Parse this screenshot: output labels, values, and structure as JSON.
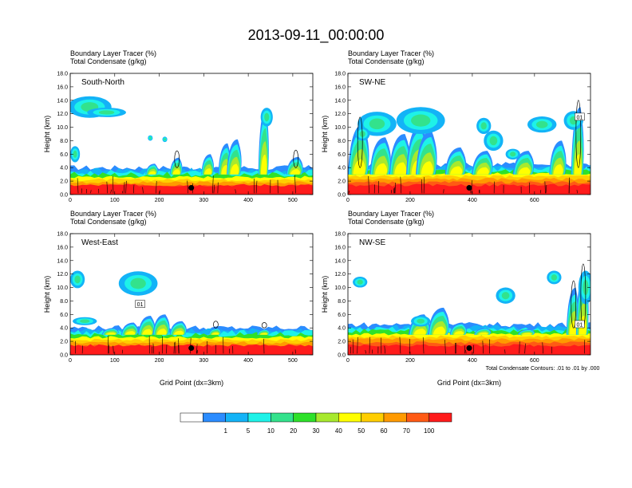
{
  "figure": {
    "title": "2013-09-11_00:00:00",
    "x_axis_label": "Grid Point (dx=3km)",
    "contour_note": "Total Condensate Contours: .01 to .01 by .000"
  },
  "colorbar": {
    "field": "Boundary Layer Tracer (%)",
    "bins": [
      {
        "color": "#ffffff",
        "label": ""
      },
      {
        "color": "#2b8cff",
        "label": "1"
      },
      {
        "color": "#13b3f7",
        "label": "5"
      },
      {
        "color": "#1ef2e8",
        "label": "10"
      },
      {
        "color": "#33e28c",
        "label": "20"
      },
      {
        "color": "#2ee12a",
        "label": "30"
      },
      {
        "color": "#a7e92e",
        "label": "40"
      },
      {
        "color": "#ffff00",
        "label": "50"
      },
      {
        "color": "#ffce00",
        "label": "60"
      },
      {
        "color": "#ff9a00",
        "label": "70"
      },
      {
        "color": "#ff5a14",
        "label": "100"
      },
      {
        "color": "#ff1b1b",
        "label": ""
      }
    ]
  },
  "chart_data": [
    {
      "type": "heatmap",
      "panel_label": "South-North",
      "subtitle_line1": "Boundary Layer Tracer   (%)",
      "subtitle_line2": "Total Condensate   (g/kg)",
      "ylabel": "Height (km)",
      "xlabel": "",
      "xlim": [
        0,
        545
      ],
      "ylim": [
        0,
        18
      ],
      "xticks": [
        0,
        100,
        200,
        300,
        400,
        500
      ],
      "yticks": [
        0,
        2,
        4,
        6,
        8,
        10,
        12,
        14,
        16,
        18
      ],
      "yticklabels": [
        "0.0",
        "2.0",
        "4.0",
        "6.0",
        "8.0",
        "10.0",
        "12.0",
        "14.0",
        "16.0",
        "18.0"
      ],
      "boundary_layer_top_km": 3.0,
      "marker_x": 272,
      "marker_y_km": 1.0,
      "contour_labels": []
    },
    {
      "type": "heatmap",
      "panel_label": "SW-NE",
      "subtitle_line1": "Boundary Layer Tracer   (%)",
      "subtitle_line2": "Total Condensate   (g/kg)",
      "ylabel": "Height (km)",
      "xlabel": "",
      "xlim": [
        0,
        780
      ],
      "ylim": [
        0,
        18
      ],
      "xticks": [
        0,
        200,
        400,
        600
      ],
      "yticks": [
        0,
        2,
        4,
        6,
        8,
        10,
        12,
        14,
        16,
        18
      ],
      "yticklabels": [
        "0.0",
        "2.0",
        "4.0",
        "6.0",
        "8.0",
        "10.0",
        "12.0",
        "14.0",
        "16.0",
        "18.0"
      ],
      "boundary_layer_top_km": 3.5,
      "marker_x": 390,
      "marker_y_km": 1.0,
      "contour_labels": [
        {
          "x": 745,
          "y_km": 11.5,
          "text": "01"
        }
      ]
    },
    {
      "type": "heatmap",
      "panel_label": "West-East",
      "subtitle_line1": "Boundary Layer Tracer   (%)",
      "subtitle_line2": "Total Condensate   (g/kg)",
      "ylabel": "Height (km)",
      "xlabel": "Grid Point (dx=3km)",
      "xlim": [
        0,
        545
      ],
      "ylim": [
        0,
        18
      ],
      "xticks": [
        0,
        100,
        200,
        300,
        400,
        500
      ],
      "yticks": [
        0,
        2,
        4,
        6,
        8,
        10,
        12,
        14,
        16,
        18
      ],
      "yticklabels": [
        "0.0",
        "2.0",
        "4.0",
        "6.0",
        "8.0",
        "10.0",
        "12.0",
        "14.0",
        "16.0",
        "18.0"
      ],
      "boundary_layer_top_km": 3.0,
      "marker_x": 272,
      "marker_y_km": 1.0,
      "contour_labels": [
        {
          "x": 157,
          "y_km": 7.5,
          "text": "01"
        }
      ]
    },
    {
      "type": "heatmap",
      "panel_label": "NW-SE",
      "subtitle_line1": "Boundary Layer Tracer   (%)",
      "subtitle_line2": "Total Condensate   (g/kg)",
      "ylabel": "Height (km)",
      "xlabel": "Grid Point (dx=3km)",
      "xlim": [
        0,
        780
      ],
      "ylim": [
        0,
        18
      ],
      "xticks": [
        0,
        200,
        400,
        600
      ],
      "yticks": [
        0,
        2,
        4,
        6,
        8,
        10,
        12,
        14,
        16,
        18
      ],
      "yticklabels": [
        "0.0",
        "2.0",
        "4.0",
        "6.0",
        "8.0",
        "10.0",
        "12.0",
        "14.0",
        "16.0",
        "18.0"
      ],
      "boundary_layer_top_km": 3.5,
      "marker_x": 390,
      "marker_y_km": 1.0,
      "contour_labels": [
        {
          "x": 745,
          "y_km": 4.5,
          "text": "01"
        }
      ]
    }
  ]
}
